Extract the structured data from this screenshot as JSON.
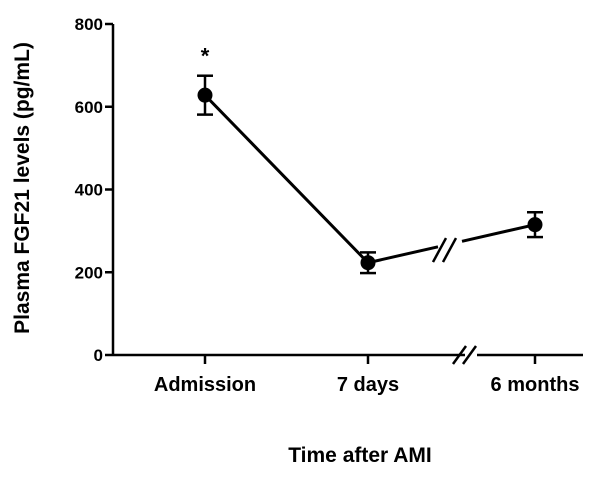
{
  "chart_data": {
    "type": "line",
    "xlabel": "Time after AMI",
    "ylabel": "Plasma FGF21 levels (pg/mL)",
    "ylim": [
      0,
      800
    ],
    "yticks": [
      0,
      200,
      400,
      600,
      800
    ],
    "y_tick_labels": [
      "0",
      "200",
      "400",
      "600",
      "800"
    ],
    "categories": [
      "Admission",
      "7 days",
      "6 months"
    ],
    "values": [
      628,
      223,
      315
    ],
    "error": [
      47,
      25,
      30
    ],
    "annotations": [
      {
        "category": "Admission",
        "text": "*"
      }
    ],
    "axis_break": "between 7 days and 6 months",
    "grid": false,
    "legend": "none",
    "colors": {
      "line": "#000000",
      "marker": "#000000"
    }
  }
}
